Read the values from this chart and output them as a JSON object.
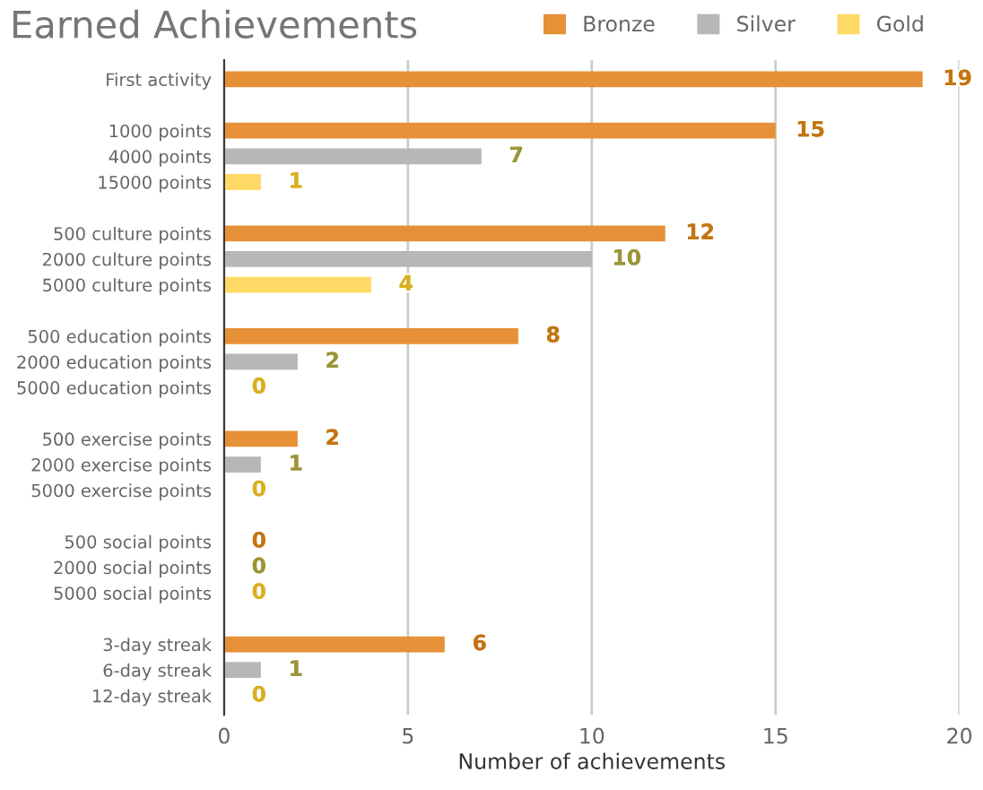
{
  "chart_data": {
    "type": "bar",
    "orientation": "horizontal",
    "title": "Earned Achievements",
    "xlabel": "Number of achievements",
    "categories": [
      "First activity",
      null,
      "1000 points",
      "4000 points",
      "15000 points",
      null,
      "500 culture points",
      "2000 culture points",
      "5000 culture points",
      null,
      "500 education points",
      "2000 education points",
      "5000 education points",
      null,
      "500 exercise points",
      "2000 exercise points",
      "5000 exercise points",
      null,
      "500 social points",
      "2000 social points",
      "5000 social points",
      null,
      "3-day streak",
      "6-day streak",
      "12-day streak"
    ],
    "series": [
      {
        "name": "Bronze",
        "color": "#e69138",
        "values": [
          19,
          null,
          15,
          null,
          null,
          null,
          12,
          null,
          null,
          null,
          8,
          null,
          null,
          null,
          2,
          null,
          null,
          null,
          0,
          null,
          null,
          null,
          6,
          null,
          null
        ]
      },
      {
        "name": "Silver",
        "color": "#b7b7b7",
        "values": [
          null,
          null,
          null,
          7,
          null,
          null,
          null,
          10,
          null,
          null,
          null,
          2,
          null,
          null,
          null,
          1,
          null,
          null,
          null,
          0,
          null,
          null,
          null,
          1,
          null
        ]
      },
      {
        "name": "Gold",
        "color": "#ffd966",
        "values": [
          null,
          null,
          null,
          null,
          1,
          null,
          null,
          null,
          4,
          null,
          null,
          null,
          0,
          null,
          null,
          null,
          0,
          null,
          null,
          null,
          0,
          null,
          null,
          null,
          0
        ]
      }
    ],
    "xlim": [
      0,
      20
    ],
    "xticks": [
      0,
      5,
      10,
      15,
      20
    ],
    "grid": "x",
    "legend": "top right",
    "data_labels": true
  }
}
